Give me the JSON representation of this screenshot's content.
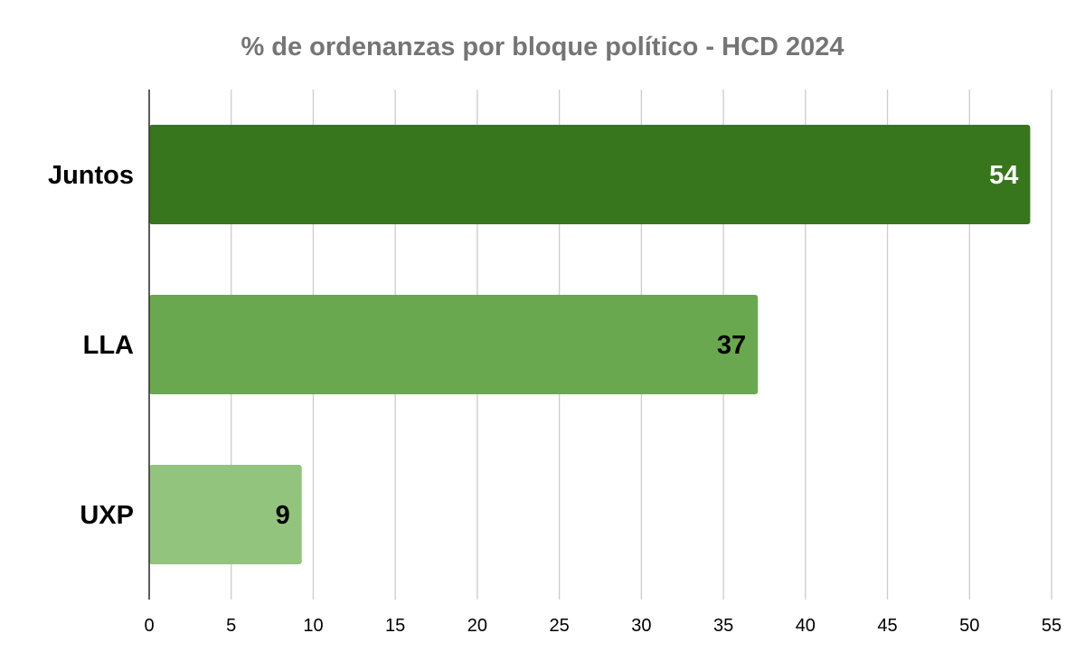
{
  "chart_data": {
    "type": "bar",
    "orientation": "horizontal",
    "title": "% de ordenanzas por bloque político - HCD 2024",
    "xlabel": "",
    "ylabel": "",
    "categories": [
      "Juntos",
      "LLA",
      "UXP"
    ],
    "values": [
      53.7,
      37.1,
      9.3
    ],
    "data_labels": [
      "54",
      "37",
      "9"
    ],
    "bar_colors": [
      "#38761d",
      "#6aa84f",
      "#93c47d"
    ],
    "label_colors": [
      "#ffffff",
      "#000000",
      "#000000"
    ],
    "xlim": [
      0,
      55
    ],
    "xticks": [
      0,
      5,
      10,
      15,
      20,
      25,
      30,
      35,
      40,
      45,
      50,
      55
    ],
    "grid": true,
    "legend": "none"
  }
}
